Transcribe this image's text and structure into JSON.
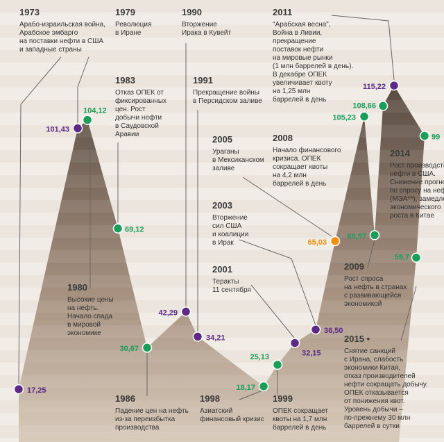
{
  "chart_data": {
    "type": "line",
    "values": [
      17.25,
      101.43,
      104.12,
      69.12,
      30.67,
      42.29,
      34.21,
      18.17,
      25.13,
      32.15,
      36.5,
      65.03,
      105.23,
      66.97,
      108.66,
      115.22,
      99,
      59.7
    ],
    "value_labels": [
      "17,25",
      "101,43",
      "104,12",
      "69,12",
      "30,67",
      "42,29",
      "34,21",
      "18,17",
      "25,13",
      "32,15",
      "36,50",
      "65,03",
      "105,23",
      "66,97",
      "108,66",
      "115,22",
      "99",
      "59,7"
    ],
    "point_colors": [
      "#5b2a86",
      "#5b2a86",
      "#1a9e5a",
      "#1a9e5a",
      "#1a9e5a",
      "#5b2a86",
      "#5b2a86",
      "#1a9e5a",
      "#1a9e5a",
      "#5b2a86",
      "#5b2a86",
      "#f0900a",
      "#1a9e5a",
      "#1a9e5a",
      "#1a9e5a",
      "#5b2a86",
      "#1a9e5a",
      "#1a9e5a"
    ],
    "annotations": [
      {
        "year": "1973",
        "lines": [
          "Арабо-израильская война,",
          "Арабское эмбарго",
          "на поставки нефти в США",
          "и западные страны"
        ]
      },
      {
        "year": "1979",
        "lines": [
          "Революция",
          "в Иране"
        ]
      },
      {
        "year": "1990",
        "lines": [
          "Вторжение",
          "Ирака в Кувейт"
        ]
      },
      {
        "year": "2011",
        "lines": [
          "\"Арабская весна\",",
          "Война в Ливии,",
          "прекращение",
          "поставок нефти",
          "на мировые рынки",
          "(1 млн баррелей в день).",
          "В декабре ОПЕК",
          "увеличивает квоту",
          "на 1,25 млн",
          "баррелей в день"
        ]
      },
      {
        "year": "1983",
        "lines": [
          "Отказ ОПЕК от",
          "фиксированных",
          "цен. Рост",
          "добычи нефти",
          "в Саудовской",
          "Аравии"
        ]
      },
      {
        "year": "1991",
        "lines": [
          "Прекращение войны",
          "в Персидском заливе"
        ]
      },
      {
        "year": "2005",
        "lines": [
          "Ураганы",
          "в Мексиканском",
          "заливе"
        ]
      },
      {
        "year": "2008",
        "lines": [
          "Начало финансового",
          "кризиса. ОПЕК",
          "сокращает квоты",
          "на 4,2 млн",
          "баррелей в день"
        ]
      },
      {
        "year": "2014",
        "lines": [
          "Рост производства",
          "нефти в США.",
          "Снижение прогноза",
          "по спросу на нефть",
          "(МЭА**), замедление",
          "экономического",
          "роста в Китае"
        ]
      },
      {
        "year": "2003",
        "lines": [
          "Вторжение",
          "сил США",
          "и коалиции",
          "в Ирак"
        ]
      },
      {
        "year": "2001",
        "lines": [
          "Теракты",
          "11 сентября"
        ]
      },
      {
        "year": "1980",
        "lines": [
          "Высокие цены",
          "на нефть.",
          "Начало спада",
          "в мировой",
          "экономике"
        ]
      },
      {
        "year": "2009",
        "lines": [
          "Рост спроса",
          "на нефть в странах",
          "с развивающейся",
          "экономикой"
        ]
      },
      {
        "year": "2015 •",
        "lines": [
          "Снятие санкций",
          "с Ирана, слабость",
          "экономики Китая,",
          "отказ производителей",
          "нефти сокращать добычу.",
          "ОПЕК отказывается",
          "от понижения квот.",
          "Уровень добычи –",
          "по-прежнему 30 млн",
          "баррелей в сутки"
        ]
      },
      {
        "year": "1986",
        "lines": [
          "Падение цен на нефть",
          "из-за переизбытка",
          "производства"
        ]
      },
      {
        "year": "1998",
        "lines": [
          "Азиатский",
          "финансовый кризис"
        ]
      },
      {
        "year": "1999",
        "lines": [
          "ОПЕК сокращает",
          "квоты на 1,7 млн",
          "баррелей в день"
        ]
      }
    ]
  }
}
